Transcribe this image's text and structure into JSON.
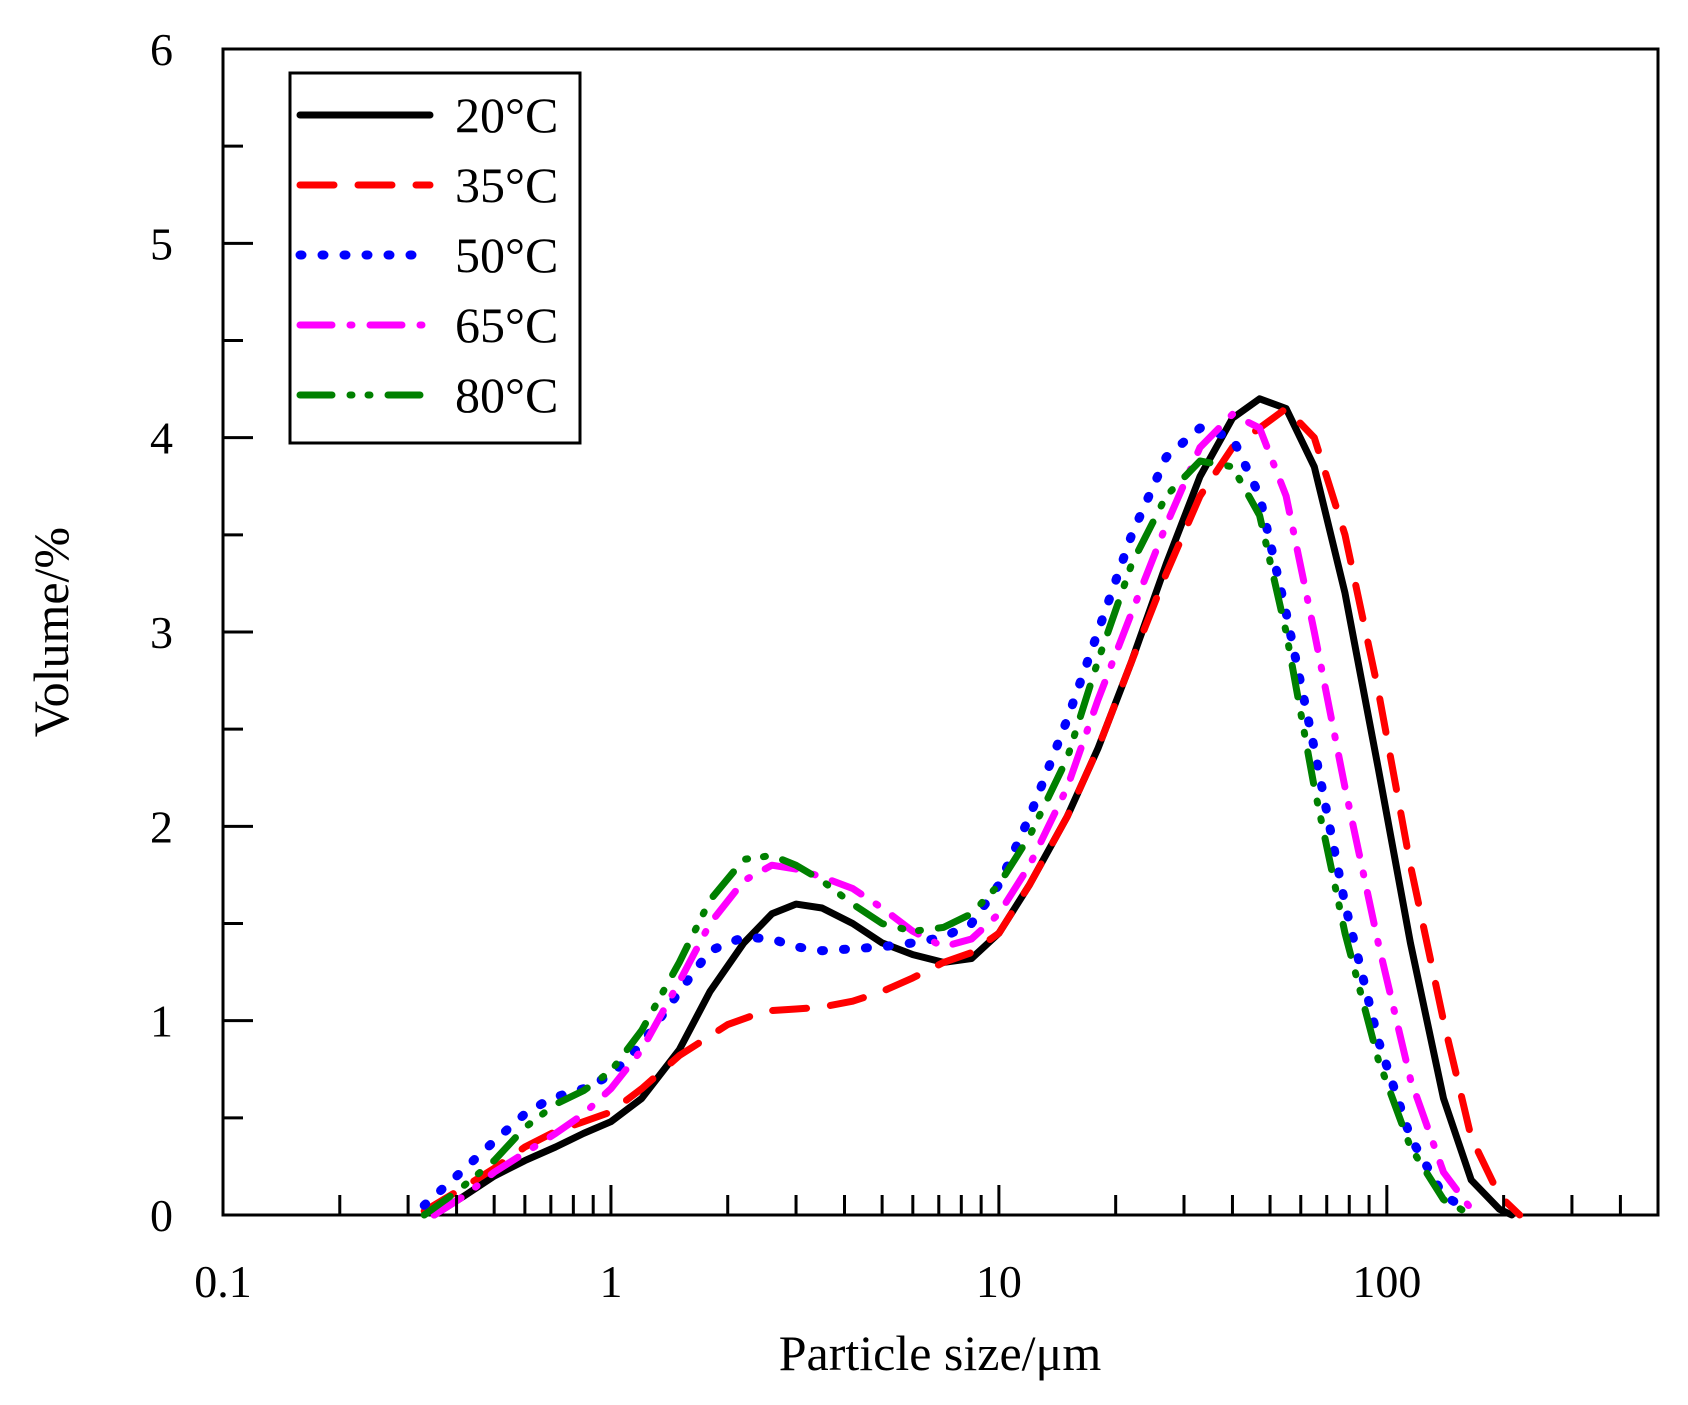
{
  "chart_data": {
    "type": "line",
    "title": "",
    "xlabel": "Particle size/μm",
    "ylabel": "Volume/%",
    "xscale": "log",
    "xlim": [
      0.1,
      500
    ],
    "ylim": [
      0,
      6
    ],
    "x_tick_labels": [
      {
        "value": 0.1,
        "label": "0.1"
      },
      {
        "value": 1,
        "label": "1"
      },
      {
        "value": 10,
        "label": "10"
      },
      {
        "value": 100,
        "label": "100"
      }
    ],
    "y_tick_labels": [
      {
        "value": 0,
        "label": "0"
      },
      {
        "value": 1,
        "label": "1"
      },
      {
        "value": 2,
        "label": "2"
      },
      {
        "value": 3,
        "label": "3"
      },
      {
        "value": 4,
        "label": "4"
      },
      {
        "value": 5,
        "label": "5"
      },
      {
        "value": 6,
        "label": "6"
      }
    ],
    "grid": false,
    "legend_position": "top-left",
    "series": [
      {
        "name": "20°C",
        "color": "#000000",
        "style": "solid",
        "x": [
          0.35,
          0.42,
          0.5,
          0.6,
          0.72,
          0.85,
          1.0,
          1.2,
          1.5,
          1.8,
          2.2,
          2.6,
          3.0,
          3.5,
          4.2,
          5.0,
          6.0,
          7.2,
          8.5,
          10,
          12,
          15,
          18,
          22,
          27,
          33,
          40,
          47,
          55,
          65,
          78,
          95,
          115,
          140,
          165,
          195,
          210
        ],
        "y": [
          0.0,
          0.1,
          0.2,
          0.28,
          0.35,
          0.42,
          0.48,
          0.6,
          0.85,
          1.15,
          1.4,
          1.55,
          1.6,
          1.58,
          1.5,
          1.4,
          1.34,
          1.3,
          1.32,
          1.45,
          1.7,
          2.05,
          2.4,
          2.85,
          3.35,
          3.8,
          4.1,
          4.2,
          4.15,
          3.85,
          3.2,
          2.3,
          1.4,
          0.6,
          0.18,
          0.03,
          0.0
        ]
      },
      {
        "name": "35°C",
        "color": "#ff0000",
        "style": "dashed",
        "x": [
          0.33,
          0.4,
          0.5,
          0.6,
          0.72,
          0.85,
          1.0,
          1.2,
          1.5,
          2.0,
          2.5,
          3.0,
          3.5,
          4.2,
          5.0,
          6.0,
          7.2,
          8.5,
          10,
          12,
          15,
          18,
          22,
          27,
          33,
          40,
          47,
          55,
          65,
          78,
          95,
          115,
          140,
          165,
          195,
          220
        ],
        "y": [
          0.02,
          0.12,
          0.24,
          0.35,
          0.43,
          0.48,
          0.53,
          0.65,
          0.82,
          0.98,
          1.05,
          1.06,
          1.07,
          1.1,
          1.15,
          1.22,
          1.3,
          1.35,
          1.45,
          1.7,
          2.05,
          2.4,
          2.85,
          3.3,
          3.7,
          3.95,
          4.05,
          4.15,
          4.0,
          3.5,
          2.7,
          1.8,
          1.0,
          0.4,
          0.1,
          0.0
        ]
      },
      {
        "name": "50°C",
        "color": "#0000ff",
        "style": "dotted",
        "x": [
          0.33,
          0.4,
          0.5,
          0.6,
          0.7,
          0.85,
          1.0,
          1.2,
          1.5,
          1.8,
          2.2,
          2.6,
          3.0,
          3.5,
          4.2,
          5.0,
          6.0,
          7.2,
          8.5,
          10,
          12,
          15,
          18,
          22,
          27,
          33,
          40,
          47,
          55,
          65,
          78,
          95,
          115,
          140,
          165
        ],
        "y": [
          0.05,
          0.2,
          0.38,
          0.52,
          0.6,
          0.65,
          0.72,
          0.88,
          1.15,
          1.36,
          1.43,
          1.42,
          1.38,
          1.36,
          1.37,
          1.38,
          1.4,
          1.43,
          1.5,
          1.7,
          2.05,
          2.55,
          3.0,
          3.5,
          3.9,
          4.05,
          4.0,
          3.7,
          3.1,
          2.4,
          1.6,
          0.9,
          0.4,
          0.1,
          0.02
        ]
      },
      {
        "name": "65°C",
        "color": "#ff00ff",
        "style": "dashdot",
        "x": [
          0.35,
          0.42,
          0.5,
          0.6,
          0.72,
          0.85,
          1.0,
          1.2,
          1.5,
          1.8,
          2.2,
          2.6,
          3.0,
          3.5,
          4.2,
          5.0,
          6.0,
          7.2,
          8.5,
          10,
          12,
          15,
          18,
          22,
          27,
          33,
          40,
          47,
          55,
          65,
          78,
          95,
          115,
          140,
          165
        ],
        "y": [
          0.0,
          0.1,
          0.22,
          0.32,
          0.42,
          0.52,
          0.65,
          0.85,
          1.2,
          1.5,
          1.72,
          1.8,
          1.78,
          1.74,
          1.68,
          1.58,
          1.46,
          1.38,
          1.42,
          1.55,
          1.8,
          2.2,
          2.65,
          3.1,
          3.55,
          3.95,
          4.12,
          4.05,
          3.7,
          3.0,
          2.2,
          1.4,
          0.7,
          0.22,
          0.03
        ]
      },
      {
        "name": "80°C",
        "color": "#008000",
        "style": "dashdotdot",
        "x": [
          0.33,
          0.4,
          0.5,
          0.6,
          0.72,
          0.85,
          1.0,
          1.2,
          1.5,
          1.8,
          2.2,
          2.6,
          3.0,
          3.5,
          4.2,
          5.0,
          6.0,
          7.2,
          8.5,
          10,
          12,
          15,
          18,
          22,
          27,
          33,
          40,
          47,
          55,
          65,
          78,
          95,
          115,
          140,
          165
        ],
        "y": [
          0.0,
          0.12,
          0.28,
          0.45,
          0.57,
          0.64,
          0.74,
          0.95,
          1.3,
          1.62,
          1.83,
          1.85,
          1.8,
          1.72,
          1.6,
          1.5,
          1.46,
          1.48,
          1.55,
          1.7,
          1.95,
          2.35,
          2.85,
          3.35,
          3.7,
          3.88,
          3.85,
          3.6,
          3.0,
          2.2,
          1.45,
          0.8,
          0.35,
          0.08,
          0.0
        ]
      }
    ]
  }
}
